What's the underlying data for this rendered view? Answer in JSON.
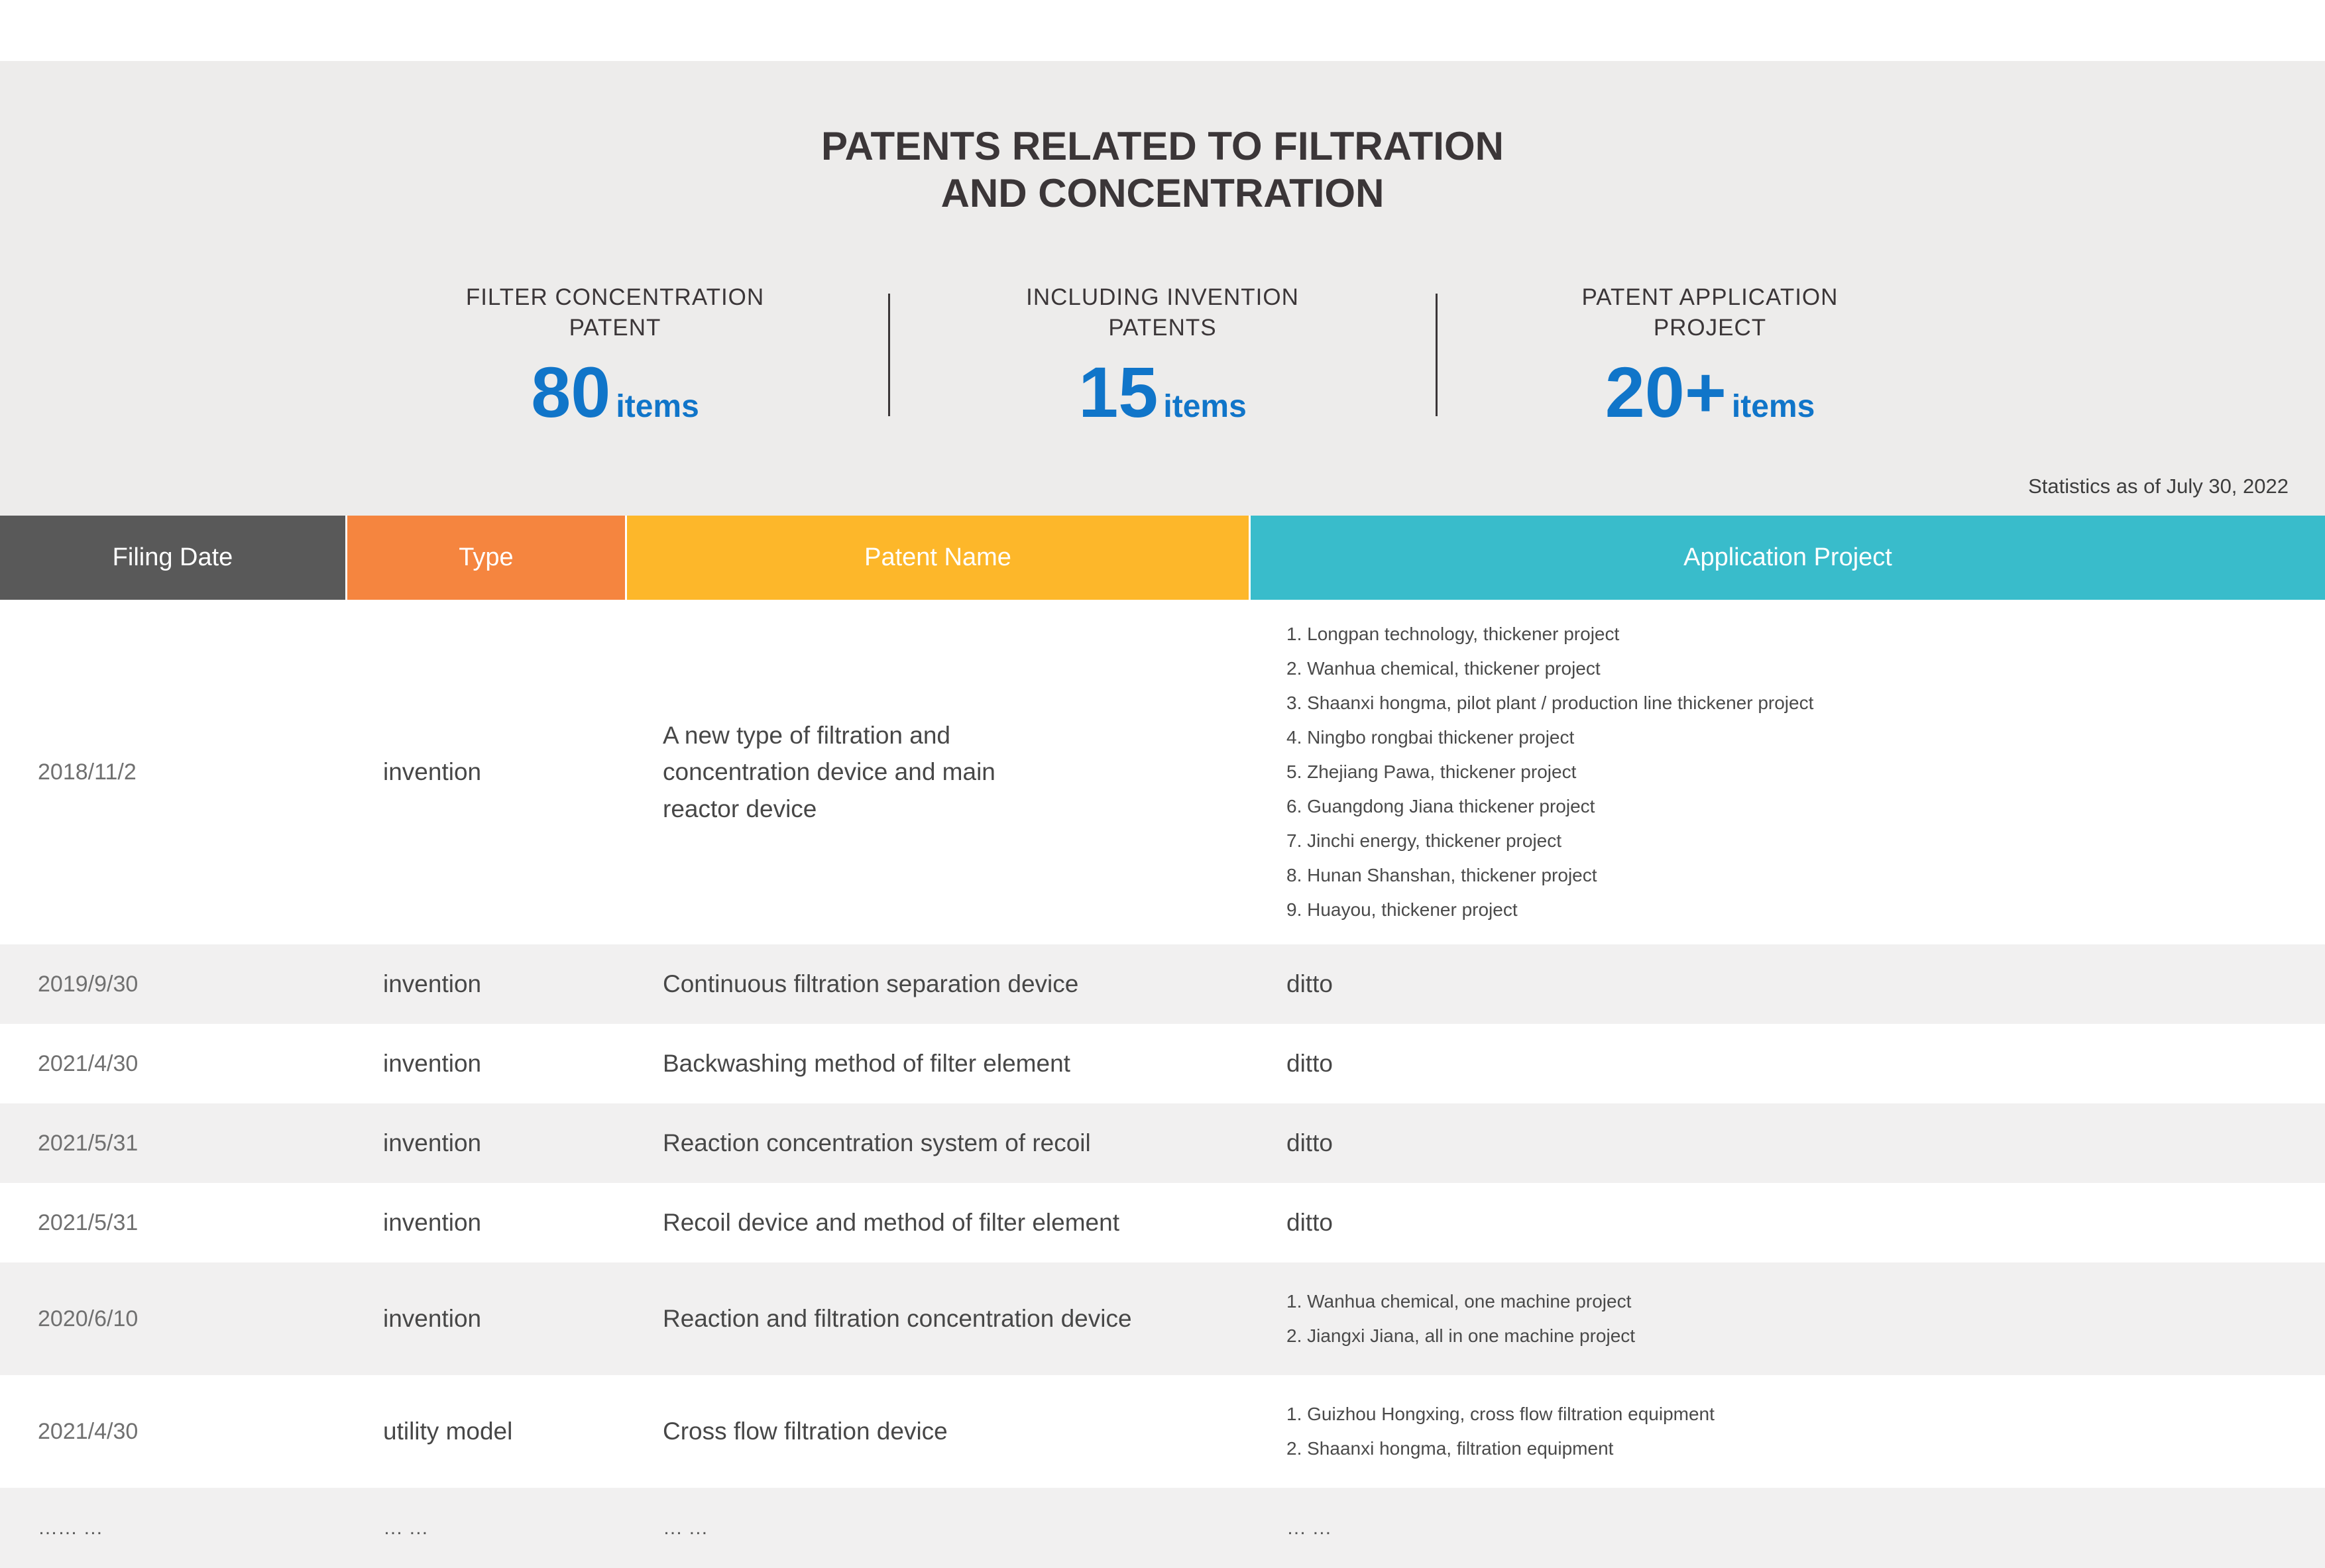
{
  "page": {
    "title_lines": [
      "PATENTS RELATED TO FILTRATION",
      "AND CONCENTRATION"
    ],
    "stats": [
      {
        "label_lines": [
          "FILTER CONCENTRATION",
          "PATENT"
        ],
        "value": "80",
        "unit": "items"
      },
      {
        "label_lines": [
          "INCLUDING INVENTION",
          "PATENTS"
        ],
        "value": "15",
        "unit": "items"
      },
      {
        "label_lines": [
          "PATENT APPLICATION",
          "PROJECT"
        ],
        "value": "20+",
        "unit": "items"
      }
    ],
    "note": "Statistics as of July 30, 2022"
  },
  "colors": {
    "accent_blue": "#1075C9",
    "hero_bg": "#EDECEB",
    "row_alt_bg": "#F1F0F0",
    "title_text": "#3B3638",
    "header_text": "#FFFFFF"
  },
  "table": {
    "columns": [
      {
        "label": "Filing Date",
        "color": "#595959"
      },
      {
        "label": "Type",
        "color": "#F5853F"
      },
      {
        "label": "Patent Name",
        "color": "#FDB72A"
      },
      {
        "label": "Application Project",
        "color": "#39BCCB"
      }
    ],
    "rows": [
      {
        "date": "2018/11/2",
        "type": "invention",
        "name_lines": [
          "A new type of filtration and",
          "concentration device and main",
          "reactor device"
        ],
        "projects": [
          "1. Longpan technology, thickener project",
          "2. Wanhua chemical, thickener project",
          "3. Shaanxi hongma, pilot plant / production line thickener project",
          "4. Ningbo rongbai thickener project",
          "5. Zhejiang Pawa, thickener project",
          "6. Guangdong Jiana thickener project",
          "7. Jinchi energy, thickener project",
          "8. Hunan Shanshan, thickener project",
          "9. Huayou, thickener project"
        ]
      },
      {
        "date": "2019/9/30",
        "type": "invention",
        "name_lines": [
          "Continuous filtration separation device"
        ],
        "projects": [
          "ditto"
        ]
      },
      {
        "date": "2021/4/30",
        "type": "invention",
        "name_lines": [
          "Backwashing method of filter element"
        ],
        "projects": [
          "ditto"
        ]
      },
      {
        "date": "2021/5/31",
        "type": "invention",
        "name_lines": [
          "Reaction concentration system of recoil"
        ],
        "projects": [
          "ditto"
        ]
      },
      {
        "date": "2021/5/31",
        "type": "invention",
        "name_lines": [
          "Recoil device and method of filter element"
        ],
        "projects": [
          "ditto"
        ]
      },
      {
        "date": "2020/6/10",
        "type": "invention",
        "name_lines": [
          "Reaction and filtration concentration device"
        ],
        "projects": [
          "1. Wanhua chemical, one machine project",
          "2. Jiangxi Jiana, all in one machine project"
        ]
      },
      {
        "date": "2021/4/30",
        "type": "utility model",
        "name_lines": [
          "Cross flow filtration device"
        ],
        "projects": [
          "1. Guizhou Hongxing, cross flow filtration equipment",
          "2. Shaanxi hongma, filtration equipment"
        ]
      },
      {
        "date": "…… …",
        "type": "… …",
        "name_lines": [
          "… …"
        ],
        "projects": [
          "… …"
        ]
      }
    ]
  }
}
